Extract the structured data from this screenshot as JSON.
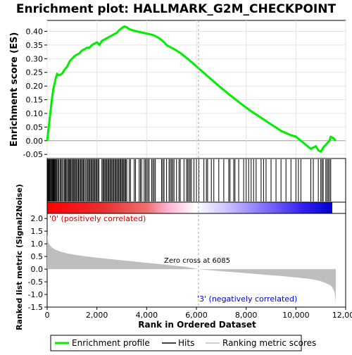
{
  "chart_data": {
    "type": "line",
    "title": "Enrichment plot: HALLMARK_G2M_CHECKPOINT",
    "xlabel": "Rank in Ordered Dataset",
    "x_ticks": [
      "0",
      "2,000",
      "4,000",
      "6,000",
      "8,000",
      "10,000",
      "12,000"
    ],
    "x_tick_values": [
      0,
      2000,
      4000,
      6000,
      8000,
      10000,
      12000
    ],
    "xlim": [
      0,
      12000
    ],
    "n_genes": 11600,
    "panels": {
      "es": {
        "ylabel": "Enrichment score (ES)",
        "ylim": [
          -0.065,
          0.44
        ],
        "y_ticks": [
          "-0.05",
          "0.00",
          "0.05",
          "0.10",
          "0.15",
          "0.20",
          "0.25",
          "0.30",
          "0.35",
          "0.40"
        ],
        "y_tick_values": [
          -0.05,
          0.0,
          0.05,
          0.1,
          0.15,
          0.2,
          0.25,
          0.3,
          0.35,
          0.4
        ],
        "grid": true,
        "series": [
          {
            "name": "Enrichment profile",
            "color": "#00ee00",
            "x": [
              0,
              50,
              100,
              150,
              200,
              250,
              300,
              350,
              400,
              450,
              500,
              600,
              700,
              800,
              900,
              1000,
              1100,
              1200,
              1300,
              1400,
              1500,
              1600,
              1700,
              1800,
              1900,
              2000,
              2100,
              2200,
              2300,
              2400,
              2500,
              2600,
              2700,
              2800,
              2900,
              3000,
              3100,
              3200,
              3300,
              3400,
              3500,
              3600,
              3700,
              3800,
              3900,
              4000,
              4100,
              4200,
              4300,
              4400,
              4500,
              4600,
              4700,
              4800,
              4900,
              5000,
              5200,
              5400,
              5600,
              5800,
              6000,
              6200,
              6400,
              6600,
              6800,
              7000,
              7200,
              7400,
              7600,
              7800,
              8000,
              8200,
              8400,
              8600,
              8800,
              9000,
              9200,
              9400,
              9600,
              9800,
              10000,
              10200,
              10400,
              10600,
              10700,
              10800,
              10900,
              11000,
              11100,
              11200,
              11300,
              11350,
              11400,
              11500,
              11600
            ],
            "values": [
              0.0,
              0.04,
              0.08,
              0.12,
              0.16,
              0.19,
              0.21,
              0.23,
              0.245,
              0.24,
              0.24,
              0.245,
              0.26,
              0.27,
              0.29,
              0.3,
              0.31,
              0.315,
              0.32,
              0.33,
              0.335,
              0.34,
              0.34,
              0.35,
              0.355,
              0.36,
              0.35,
              0.365,
              0.37,
              0.375,
              0.38,
              0.385,
              0.39,
              0.395,
              0.405,
              0.412,
              0.418,
              0.415,
              0.408,
              0.405,
              0.402,
              0.4,
              0.398,
              0.396,
              0.394,
              0.392,
              0.39,
              0.388,
              0.385,
              0.38,
              0.375,
              0.368,
              0.36,
              0.35,
              0.345,
              0.34,
              0.33,
              0.318,
              0.303,
              0.288,
              0.272,
              0.256,
              0.24,
              0.224,
              0.208,
              0.193,
              0.178,
              0.163,
              0.149,
              0.135,
              0.121,
              0.108,
              0.096,
              0.084,
              0.072,
              0.06,
              0.048,
              0.036,
              0.028,
              0.02,
              0.015,
              0.0,
              -0.015,
              -0.03,
              -0.025,
              -0.02,
              -0.035,
              -0.04,
              -0.025,
              -0.015,
              -0.005,
              0.0,
              0.015,
              0.01,
              0.0
            ]
          }
        ]
      },
      "hits": {
        "legend": "Hits",
        "color": "#000000",
        "positions": [
          15,
          40,
          70,
          95,
          120,
          150,
          180,
          210,
          240,
          270,
          300,
          330,
          360,
          390,
          430,
          470,
          520,
          560,
          600,
          650,
          700,
          730,
          760,
          800,
          850,
          880,
          910,
          950,
          990,
          1030,
          1070,
          1100,
          1140,
          1180,
          1220,
          1260,
          1300,
          1340,
          1380,
          1420,
          1460,
          1500,
          1550,
          1600,
          1640,
          1680,
          1720,
          1760,
          1800,
          1840,
          1880,
          1920,
          1960,
          2000,
          2040,
          2080,
          2200,
          2240,
          2280,
          2320,
          2360,
          2400,
          2440,
          2480,
          2520,
          2560,
          2600,
          2640,
          2680,
          2720,
          2760,
          2800,
          2840,
          2880,
          2920,
          2960,
          3000,
          3040,
          3080,
          3120,
          3160,
          3200,
          3300,
          3350,
          3500,
          3550,
          3700,
          3750,
          3800,
          3900,
          3950,
          4000,
          4050,
          4100,
          4200,
          4250,
          4300,
          4350,
          4600,
          4650,
          4700,
          4800,
          4900,
          4950,
          5000,
          5050,
          5100,
          5200,
          5300,
          5350,
          5500,
          5600,
          5650,
          5700,
          5750,
          5800,
          5900,
          6000,
          6100,
          6300,
          6400,
          6450,
          6600,
          6700,
          6900,
          7100,
          7300,
          7350,
          7500,
          7550,
          7700,
          7900,
          8000,
          8100,
          8200,
          8300,
          8400,
          8600,
          8700,
          8800,
          9000,
          9200,
          9400,
          9600,
          9800,
          10000,
          10100,
          10200,
          10600,
          10700,
          10900,
          11000,
          11050,
          11100,
          11200,
          11250,
          11300,
          11350,
          11400
        ]
      },
      "metric": {
        "ylabel": "Ranked list metric (Signal2Noise)",
        "legend": "Ranking metric scores",
        "color": "#bebebe",
        "ylim": [
          -1.5,
          2.2
        ],
        "y_ticks": [
          "-1.5",
          "-1.0",
          "-0.5",
          "0.0",
          "0.5",
          "1.0",
          "1.5",
          "2.0"
        ],
        "y_tick_values": [
          -1.5,
          -1.0,
          -0.5,
          0.0,
          0.5,
          1.0,
          1.5,
          2.0
        ],
        "x": [
          0,
          20,
          50,
          100,
          200,
          300,
          500,
          800,
          1200,
          1600,
          2000,
          2500,
          3000,
          3500,
          4000,
          4500,
          5000,
          5500,
          6085,
          6500,
          7000,
          7500,
          8000,
          8500,
          9000,
          9500,
          10000,
          10500,
          10800,
          11000,
          11200,
          11350,
          11450,
          11500,
          11550,
          11590,
          11600
        ],
        "values": [
          1.4,
          1.2,
          1.05,
          0.95,
          0.85,
          0.78,
          0.7,
          0.62,
          0.55,
          0.5,
          0.45,
          0.4,
          0.35,
          0.3,
          0.25,
          0.2,
          0.15,
          0.1,
          0.0,
          -0.04,
          -0.08,
          -0.12,
          -0.16,
          -0.2,
          -0.24,
          -0.28,
          -0.33,
          -0.38,
          -0.43,
          -0.48,
          -0.55,
          -0.62,
          -0.7,
          -0.8,
          -0.9,
          -1.2,
          -1.35
        ]
      }
    },
    "annotations": {
      "zero_cross": "Zero cross at 6085",
      "zero_cross_x": 6085,
      "positive_label": "'0' (positively correlated)",
      "negative_label": "'3' (negatively correlated)"
    },
    "colors": {
      "positive_label": "#dd0000",
      "negative_label": "#0000dd",
      "red": "#ff0000",
      "white": "#ffffff",
      "blue": "#0000ff"
    },
    "legend_placement": "bottom"
  }
}
